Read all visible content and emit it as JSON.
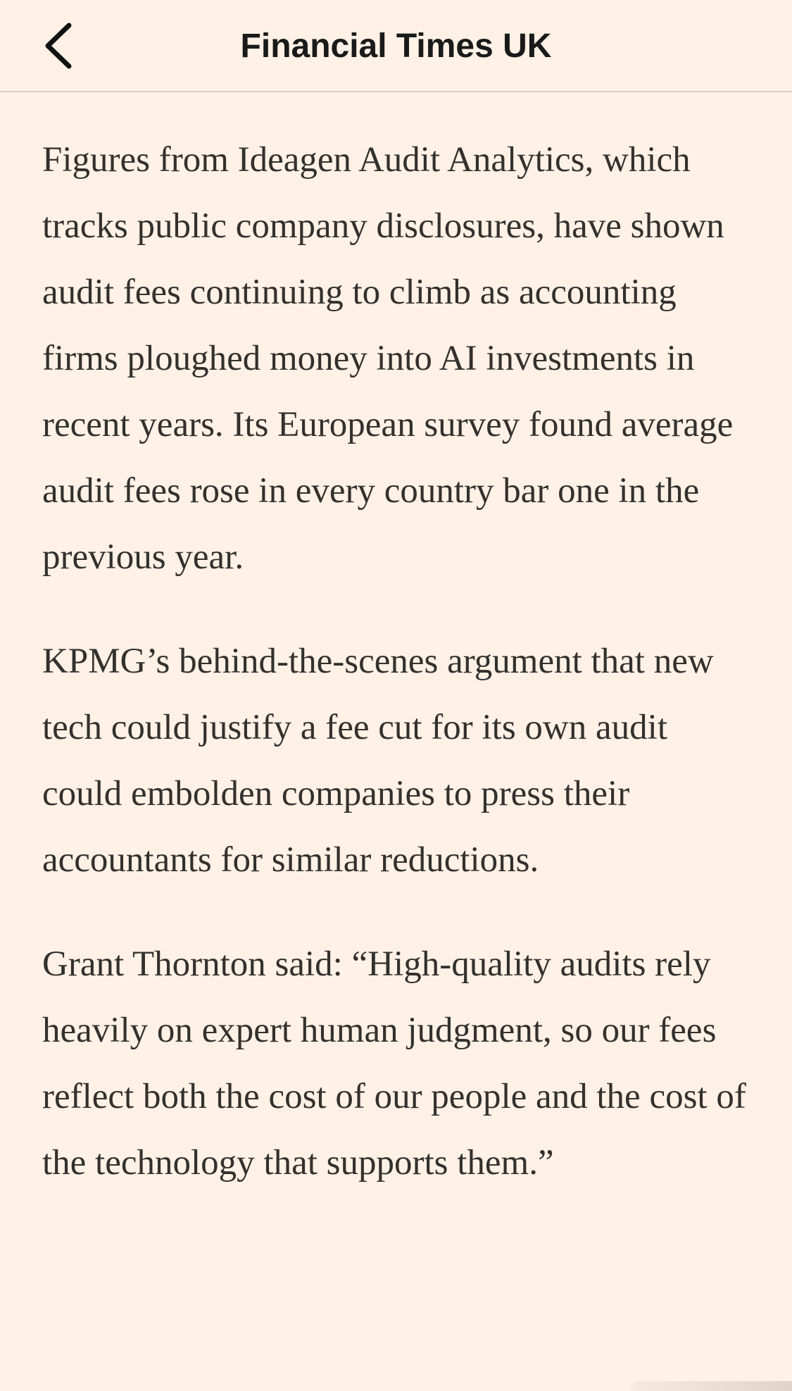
{
  "header": {
    "title": "Financial Times UK",
    "back_icon": "chevron-left-icon"
  },
  "article": {
    "paragraphs": [
      "Figures from Ideagen Audit Analytics, which tracks public company disclosures, have shown audit fees continuing to climb as accounting firms ploughed money into AI investments in recent years. Its European survey found average audit fees rose in every country bar one in the previous year.",
      "KPMG’s behind-the-scenes argument that new tech could justify a fee cut for its own audit could embolden companies to press their accountants for similar reductions.",
      "Grant Thornton said: “High-quality audits rely heavily on expert human judgment, so our fees reflect both the cost of our people and the cost of the technology that supports them.”"
    ]
  },
  "colors": {
    "background": "#fff1e5",
    "text": "#33302e",
    "divider": "#d5ccc3"
  }
}
